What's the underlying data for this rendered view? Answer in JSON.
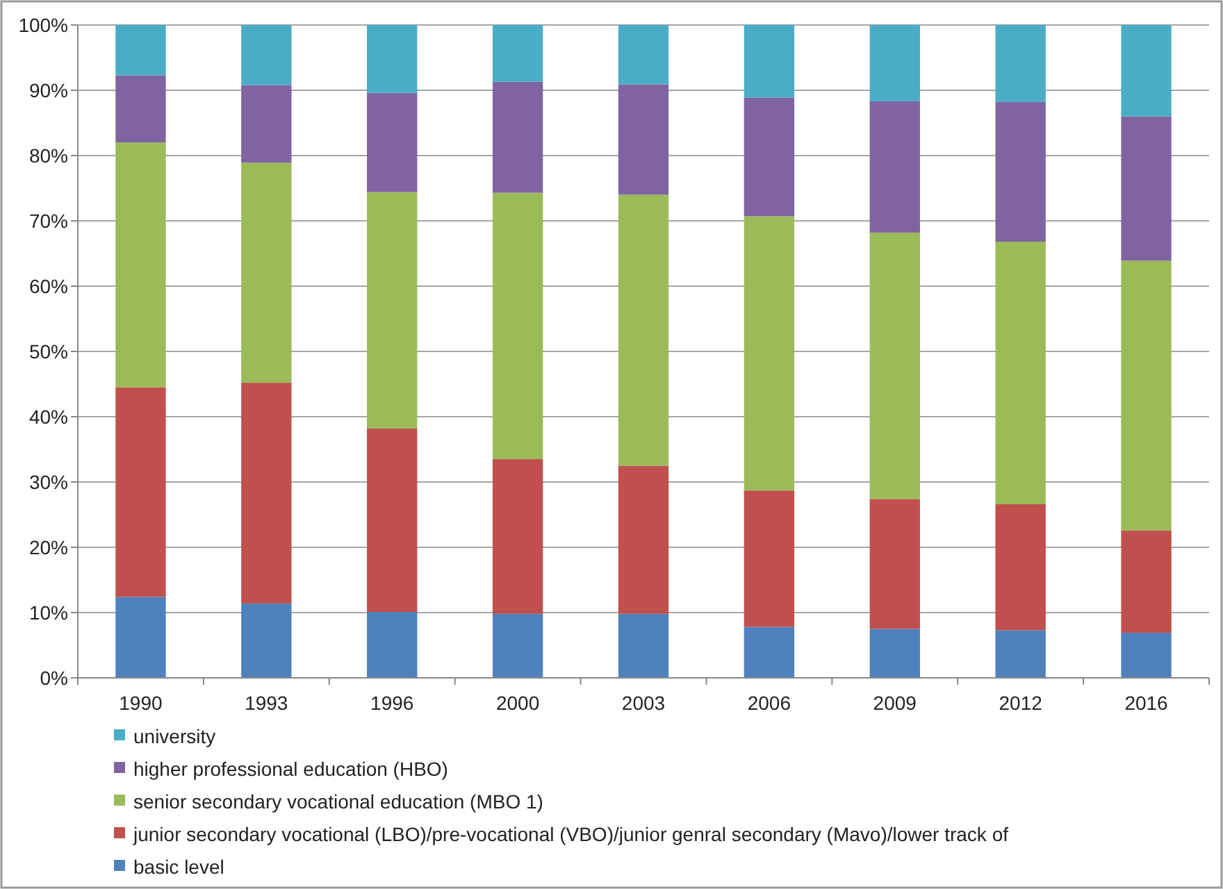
{
  "chart_data": {
    "type": "bar",
    "stacked": true,
    "categories": [
      "1990",
      "1993",
      "1996",
      "2000",
      "2003",
      "2006",
      "2009",
      "2012",
      "2016"
    ],
    "series": [
      {
        "name": "basic level",
        "color": "#4f81bd",
        "values": [
          12.4,
          11.4,
          10.1,
          9.8,
          9.8,
          7.8,
          7.5,
          7.3,
          6.9
        ]
      },
      {
        "name": "junior secondary vocational (LBO)/pre-vocational (VBO)/junior genral secondary (Mavo)/lower track of",
        "color": "#c0504d",
        "values": [
          32.1,
          33.8,
          28.1,
          23.7,
          22.7,
          20.9,
          19.9,
          19.3,
          15.7
        ]
      },
      {
        "name": "senior secondary vocational education (MBO 1)",
        "color": "#9bbb59",
        "values": [
          37.5,
          33.7,
          36.2,
          40.8,
          41.5,
          42.0,
          40.8,
          40.2,
          41.3
        ]
      },
      {
        "name": "higher professional education (HBO)",
        "color": "#8064a2",
        "values": [
          10.3,
          11.9,
          15.2,
          17.0,
          16.9,
          18.2,
          20.1,
          21.4,
          22.1
        ]
      },
      {
        "name": "university",
        "color": "#4bacc6",
        "values": [
          7.7,
          9.2,
          10.4,
          8.7,
          9.1,
          11.1,
          11.7,
          11.8,
          14.0
        ]
      }
    ],
    "ylim": [
      0,
      100
    ],
    "yticks": [
      {
        "value": 0,
        "label": "0%"
      },
      {
        "value": 10,
        "label": "10%"
      },
      {
        "value": 20,
        "label": "20%"
      },
      {
        "value": 30,
        "label": "30%"
      },
      {
        "value": 40,
        "label": "40%"
      },
      {
        "value": 50,
        "label": "50%"
      },
      {
        "value": 60,
        "label": "60%"
      },
      {
        "value": 70,
        "label": "70%"
      },
      {
        "value": 80,
        "label": "80%"
      },
      {
        "value": 90,
        "label": "90%"
      },
      {
        "value": 100,
        "label": "100%"
      }
    ],
    "grid": "y",
    "legend": "bottom"
  }
}
